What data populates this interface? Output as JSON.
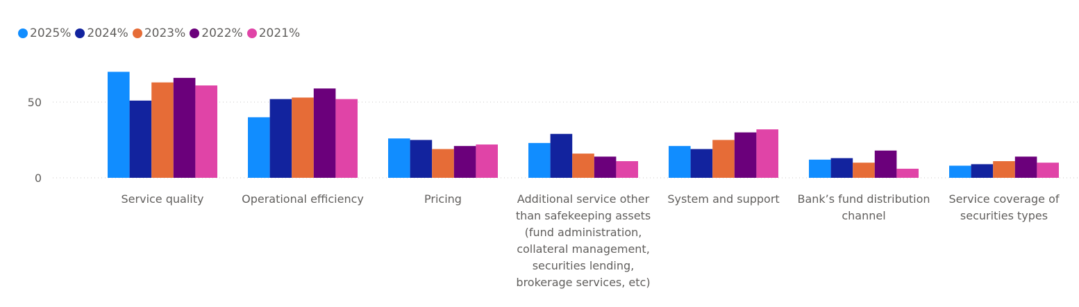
{
  "chart_data": {
    "type": "bar",
    "categories": [
      "Service quality",
      "Operational efficiency",
      "Pricing",
      "Additional service other than safekeeping assets (fund administration, collateral management, securities lending, brokerage services, etc)",
      "System and support",
      "Bank’s fund distribution channel",
      "Service coverage of securities types"
    ],
    "category_label_lines": [
      [
        "Service quality"
      ],
      [
        "Operational efficiency"
      ],
      [
        "Pricing"
      ],
      [
        "Additional service other",
        "than safekeeping assets",
        "(fund administration,",
        "collateral management,",
        "securities lending,",
        "brokerage services, etc)"
      ],
      [
        "System and support"
      ],
      [
        "Bank’s fund distribution",
        "channel"
      ],
      [
        "Service coverage of",
        "securities types"
      ]
    ],
    "series": [
      {
        "name": "2025%",
        "color": "#118dff",
        "values": [
          70,
          40,
          26,
          23,
          21,
          12,
          8
        ]
      },
      {
        "name": "2024%",
        "color": "#12239e",
        "values": [
          51,
          52,
          25,
          29,
          19,
          13,
          9
        ]
      },
      {
        "name": "2023%",
        "color": "#e66c37",
        "values": [
          63,
          53,
          19,
          16,
          25,
          10,
          11
        ]
      },
      {
        "name": "2022%",
        "color": "#6b007b",
        "values": [
          66,
          59,
          21,
          14,
          30,
          18,
          14
        ]
      },
      {
        "name": "2021%",
        "color": "#e044a7",
        "values": [
          61,
          52,
          22,
          11,
          32,
          6,
          10
        ]
      }
    ],
    "yticks": [
      0,
      50
    ],
    "ylim": [
      0,
      80
    ],
    "grid": true,
    "legend": "top-left",
    "title": "",
    "xlabel": "",
    "ylabel": ""
  }
}
